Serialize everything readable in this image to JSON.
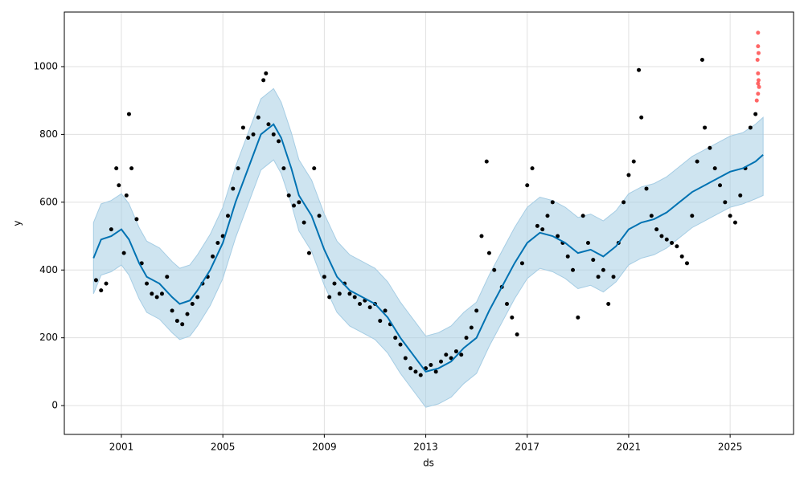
{
  "chart_data": {
    "type": "forecast",
    "x_label": "ds",
    "y_label": "y",
    "xlim": [
      1998.75,
      2027.5
    ],
    "ylim": [
      -85,
      1161
    ],
    "xticks": [
      2001,
      2005,
      2009,
      2013,
      2017,
      2021,
      2025
    ],
    "yticks": [
      0,
      200,
      400,
      600,
      800,
      1000
    ],
    "grid": true,
    "forecast": {
      "color": "#0072b2",
      "band_color": "#a6cde4",
      "x": [
        1999.9,
        2000.2,
        2000.6,
        2001.0,
        2001.3,
        2001.7,
        2002.0,
        2002.5,
        2003.0,
        2003.3,
        2003.7,
        2004.0,
        2004.5,
        2005.0,
        2005.5,
        2006.0,
        2006.5,
        2007.0,
        2007.3,
        2007.7,
        2008.0,
        2008.5,
        2009.0,
        2009.5,
        2010.0,
        2010.5,
        2011.0,
        2011.5,
        2012.0,
        2012.5,
        2013.0,
        2013.5,
        2014.0,
        2014.5,
        2015.0,
        2015.5,
        2016.0,
        2016.5,
        2017.0,
        2017.5,
        2018.0,
        2018.5,
        2019.0,
        2019.5,
        2020.0,
        2020.5,
        2021.0,
        2021.5,
        2022.0,
        2022.5,
        2023.0,
        2023.5,
        2024.0,
        2024.5,
        2025.0,
        2025.5,
        2026.0,
        2026.3
      ],
      "values": [
        435,
        490,
        500,
        520,
        490,
        420,
        380,
        360,
        320,
        300,
        310,
        340,
        400,
        480,
        600,
        700,
        800,
        830,
        790,
        700,
        620,
        560,
        460,
        380,
        340,
        320,
        300,
        260,
        200,
        150,
        100,
        110,
        130,
        170,
        200,
        280,
        350,
        420,
        480,
        510,
        500,
        480,
        450,
        460,
        440,
        470,
        520,
        540,
        550,
        570,
        600,
        630,
        650,
        670,
        690,
        700,
        720,
        740
      ],
      "lower": [
        330,
        385,
        395,
        415,
        385,
        315,
        275,
        255,
        215,
        195,
        205,
        235,
        295,
        375,
        495,
        595,
        695,
        725,
        685,
        595,
        515,
        455,
        355,
        275,
        235,
        215,
        195,
        155,
        95,
        45,
        -5,
        5,
        25,
        65,
        95,
        175,
        245,
        315,
        375,
        405,
        395,
        375,
        345,
        355,
        335,
        365,
        415,
        435,
        445,
        465,
        495,
        525,
        545,
        565,
        585,
        595,
        610,
        620
      ],
      "upper": [
        540,
        595,
        605,
        625,
        595,
        525,
        485,
        465,
        425,
        405,
        415,
        445,
        505,
        585,
        705,
        805,
        905,
        935,
        895,
        805,
        725,
        665,
        565,
        485,
        445,
        425,
        405,
        365,
        305,
        255,
        205,
        215,
        235,
        275,
        305,
        385,
        455,
        525,
        585,
        615,
        605,
        585,
        555,
        565,
        545,
        575,
        625,
        645,
        655,
        675,
        705,
        735,
        755,
        775,
        795,
        805,
        830,
        850
      ]
    },
    "observed": {
      "color": "#000000",
      "x": [
        2000.0,
        2000.2,
        2000.4,
        2000.6,
        2000.8,
        2000.9,
        2001.1,
        2001.2,
        2001.3,
        2001.4,
        2001.6,
        2001.8,
        2002.0,
        2002.2,
        2002.4,
        2002.6,
        2002.8,
        2003.0,
        2003.2,
        2003.4,
        2003.6,
        2003.8,
        2004.0,
        2004.2,
        2004.4,
        2004.6,
        2004.8,
        2005.0,
        2005.2,
        2005.4,
        2005.6,
        2005.8,
        2006.0,
        2006.2,
        2006.4,
        2006.6,
        2006.7,
        2006.8,
        2007.0,
        2007.2,
        2007.4,
        2007.6,
        2007.8,
        2008.0,
        2008.2,
        2008.4,
        2008.6,
        2008.8,
        2009.0,
        2009.2,
        2009.4,
        2009.6,
        2009.8,
        2010.0,
        2010.2,
        2010.4,
        2010.6,
        2010.8,
        2011.0,
        2011.2,
        2011.4,
        2011.6,
        2011.8,
        2012.0,
        2012.2,
        2012.4,
        2012.6,
        2012.8,
        2013.0,
        2013.2,
        2013.4,
        2013.6,
        2013.8,
        2014.0,
        2014.2,
        2014.4,
        2014.6,
        2014.8,
        2015.0,
        2015.2,
        2015.4,
        2015.5,
        2015.7,
        2016.0,
        2016.2,
        2016.4,
        2016.6,
        2016.8,
        2017.0,
        2017.2,
        2017.4,
        2017.6,
        2017.8,
        2018.0,
        2018.2,
        2018.4,
        2018.6,
        2018.8,
        2019.0,
        2019.2,
        2019.4,
        2019.6,
        2019.8,
        2020.0,
        2020.2,
        2020.4,
        2020.6,
        2020.8,
        2021.0,
        2021.2,
        2021.4,
        2021.5,
        2021.7,
        2021.9,
        2022.1,
        2022.3,
        2022.5,
        2022.7,
        2022.9,
        2023.1,
        2023.3,
        2023.5,
        2023.7,
        2023.9,
        2024.0,
        2024.2,
        2024.4,
        2024.6,
        2024.8,
        2025.0,
        2025.2,
        2025.4,
        2025.6,
        2025.8,
        2026.0
      ],
      "values": [
        370,
        340,
        360,
        520,
        700,
        650,
        450,
        620,
        860,
        700,
        550,
        420,
        360,
        330,
        320,
        330,
        380,
        280,
        250,
        240,
        270,
        300,
        320,
        360,
        380,
        440,
        480,
        500,
        560,
        640,
        700,
        820,
        790,
        800,
        850,
        960,
        980,
        830,
        800,
        780,
        700,
        620,
        590,
        600,
        540,
        450,
        700,
        560,
        380,
        320,
        360,
        330,
        360,
        330,
        320,
        300,
        310,
        290,
        300,
        250,
        280,
        240,
        200,
        180,
        140,
        110,
        100,
        90,
        110,
        120,
        100,
        130,
        150,
        140,
        160,
        150,
        200,
        230,
        280,
        500,
        720,
        450,
        400,
        350,
        300,
        260,
        210,
        420,
        650,
        700,
        530,
        520,
        560,
        600,
        500,
        480,
        440,
        400,
        260,
        560,
        480,
        430,
        380,
        400,
        300,
        380,
        480,
        600,
        680,
        720,
        990,
        850,
        640,
        560,
        520,
        500,
        490,
        480,
        470,
        440,
        420,
        560,
        720,
        1020,
        820,
        760,
        700,
        650,
        600,
        560,
        540,
        620,
        700,
        820,
        860
      ]
    },
    "outliers": {
      "color": "#ff3333",
      "x": [
        2026.1,
        2026.1,
        2026.12,
        2026.08,
        2026.1,
        2026.12,
        2026.1,
        2026.14,
        2026.1,
        2026.05
      ],
      "values": [
        1100,
        1060,
        1040,
        1020,
        980,
        960,
        950,
        940,
        920,
        900
      ]
    }
  }
}
